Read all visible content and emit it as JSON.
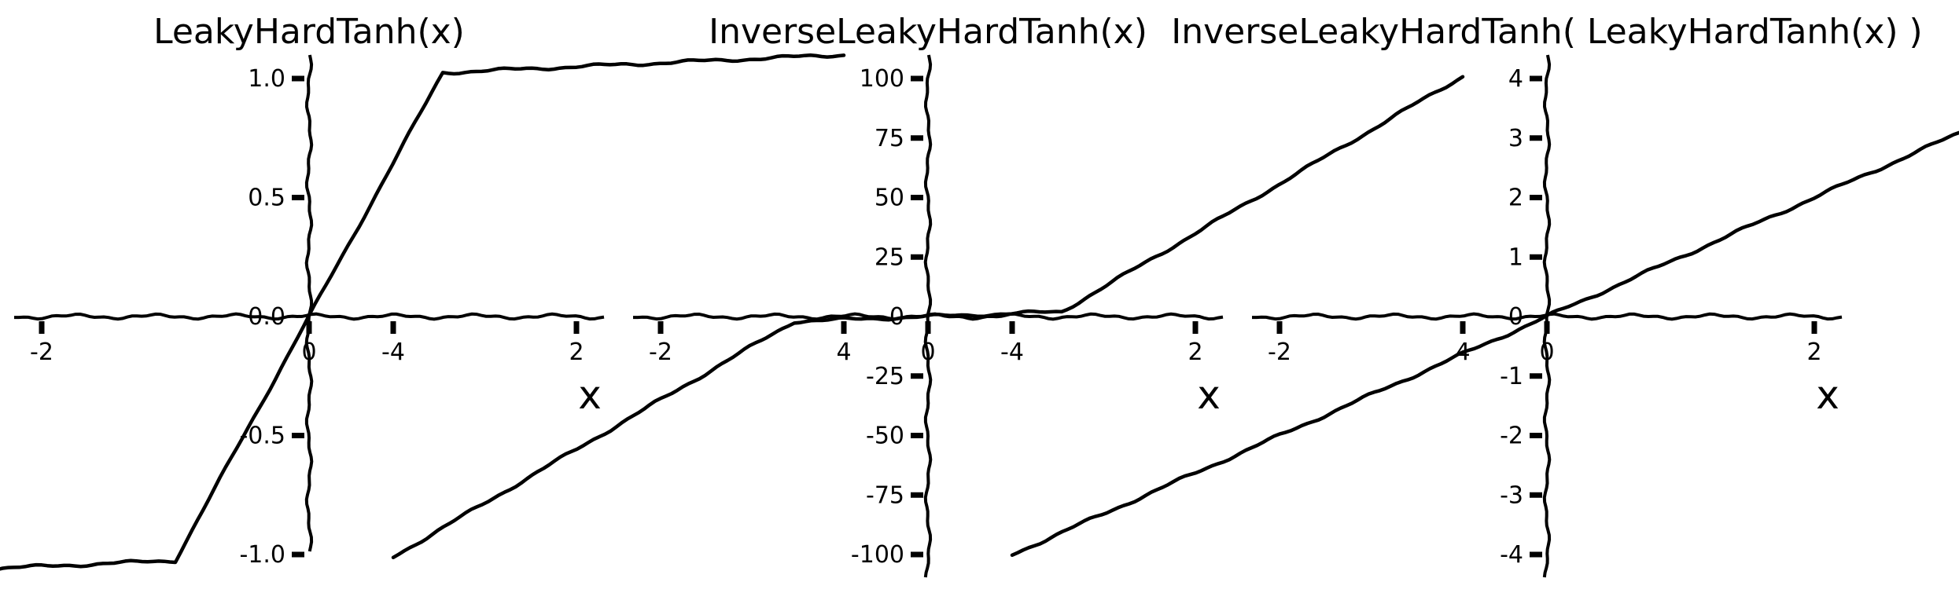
{
  "chart_data": [
    {
      "type": "line",
      "title": "LeakyHardTanh(x)",
      "xlabel": "x",
      "ylabel": "",
      "xlim": [
        -4.5,
        4.5
      ],
      "ylim": [
        -1.25,
        1.25
      ],
      "xticks": [
        -4,
        -2,
        0,
        2,
        4
      ],
      "xtick_labels": [
        "-4",
        "-2",
        "0",
        "2",
        "4"
      ],
      "yticks": [
        -1.0,
        -0.5,
        0.0,
        0.5,
        1.0
      ],
      "ytick_labels": [
        "-1.0",
        "-0.5",
        "0.0",
        "0.5",
        "1.0"
      ],
      "grid": false,
      "line_color": "#000000",
      "series": [
        {
          "x": [
            -4,
            -3,
            -2,
            -1,
            0,
            1,
            2,
            3,
            4
          ],
          "y": [
            -1.1,
            -1.075,
            -1.05,
            -1.025,
            0,
            1.025,
            1.05,
            1.075,
            1.1
          ]
        }
      ]
    },
    {
      "type": "line",
      "title": "InverseLeakyHardTanh(x)",
      "xlabel": "x",
      "ylabel": "",
      "xlim": [
        -4.5,
        4.5
      ],
      "ylim": [
        -110,
        110
      ],
      "xticks": [
        -4,
        -2,
        0,
        2,
        4
      ],
      "xtick_labels": [
        "-4",
        "-2",
        "0",
        "2",
        "4"
      ],
      "yticks": [
        -100,
        -75,
        -50,
        -25,
        0,
        25,
        50,
        75,
        100
      ],
      "ytick_labels": [
        "-100",
        "-75",
        "-50",
        "-25",
        "0",
        "25",
        "50",
        "75",
        "100"
      ],
      "grid": false,
      "line_color": "#000000",
      "series": [
        {
          "x": [
            -4,
            -3,
            -2,
            -1,
            0,
            1,
            2,
            3,
            4
          ],
          "y": [
            -101,
            -68,
            -35,
            -2,
            0,
            2,
            35,
            68,
            101
          ]
        }
      ]
    },
    {
      "type": "line",
      "title": "InverseLeakyHardTanh( LeakyHardTanh(x) )",
      "xlabel": "x",
      "ylabel": "",
      "xlim": [
        -4.5,
        4.5
      ],
      "ylim": [
        -4.4,
        4.4
      ],
      "xticks": [
        -4,
        -2,
        0,
        2,
        4
      ],
      "xtick_labels": [
        "-4",
        "-2",
        "0",
        "2",
        "4"
      ],
      "yticks": [
        -4,
        -3,
        -2,
        -1,
        0,
        1,
        2,
        3,
        4
      ],
      "ytick_labels": [
        "-4",
        "-3",
        "-2",
        "-1",
        "0",
        "1",
        "2",
        "3",
        "4"
      ],
      "grid": false,
      "line_color": "#000000",
      "series": [
        {
          "x": [
            -4,
            -3,
            -2,
            -1,
            0,
            1,
            2,
            3,
            4
          ],
          "y": [
            -4,
            -3,
            -2,
            -1,
            0,
            1,
            2,
            3,
            4
          ]
        }
      ]
    }
  ]
}
